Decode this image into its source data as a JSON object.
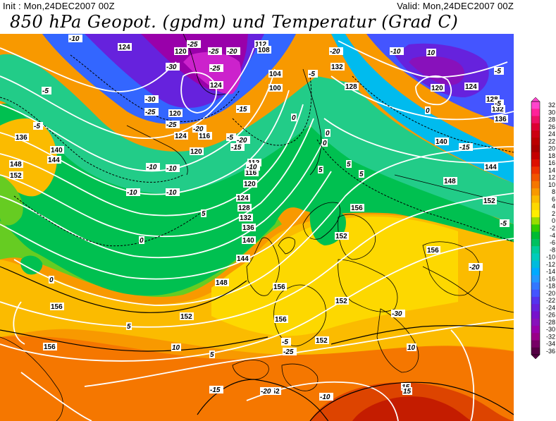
{
  "header": {
    "init": "Init : Mon,24DEC2007 00Z",
    "valid": "Valid: Mon,24DEC2007 00Z",
    "title": "850 hPa Geopot. (gpdm) und Temperatur (Grad C)"
  },
  "legend": {
    "ticks": [
      "32",
      "30",
      "28",
      "26",
      "24",
      "22",
      "20",
      "18",
      "16",
      "14",
      "12",
      "10",
      "8",
      "6",
      "4",
      "2",
      "0",
      "-2",
      "-4",
      "-6",
      "-8",
      "-10",
      "-12",
      "-14",
      "-16",
      "-18",
      "-20",
      "-22",
      "-24",
      "-26",
      "-28",
      "-30",
      "-32",
      "-34",
      "-36"
    ],
    "colors": [
      "#ff44cc",
      "#ff2299",
      "#ee1166",
      "#dd0033",
      "#cc0011",
      "#bb0000",
      "#aa0000",
      "#c40000",
      "#dd1100",
      "#ee3300",
      "#f25500",
      "#f57700",
      "#f89900",
      "#fbbb00",
      "#fdd800",
      "#ffee00",
      "#99dd00",
      "#33cc00",
      "#00bb33",
      "#00c060",
      "#00cc99",
      "#00ccbb",
      "#00bbdd",
      "#00aaff",
      "#2299ff",
      "#3377ff",
      "#4455ff",
      "#5533ee",
      "#6622dd",
      "#7711cc",
      "#8811bb",
      "#9900aa",
      "#990088",
      "#770066",
      "#550044"
    ]
  },
  "geopotential_labels": [
    "124",
    "120",
    "112",
    "108",
    "104",
    "100",
    "124",
    "120",
    "116",
    "120",
    "124",
    "112",
    "116",
    "120",
    "124",
    "128",
    "132",
    "136",
    "140",
    "144",
    "148",
    "152",
    "156",
    "136",
    "140",
    "144",
    "148",
    "152",
    "156",
    "152",
    "152",
    "152",
    "156",
    "152",
    "132",
    "128",
    "124",
    "120",
    "128",
    "132",
    "136",
    "140",
    "144",
    "148",
    "152",
    "156",
    "156",
    "156",
    "152"
  ],
  "temperature_labels": [
    "-10",
    "-25",
    "-25",
    "-20",
    "-30",
    "-25",
    "-30",
    "-25",
    "-15",
    "-20",
    "-20",
    "-25",
    "-10",
    "-10",
    "-5",
    "-5",
    "-10",
    "-20",
    "-15",
    "-10",
    "-10",
    "-5",
    "-5",
    "-10",
    "-5",
    "0",
    "0",
    "0",
    "5",
    "5",
    "10",
    "10",
    "15",
    "15",
    "5",
    "5",
    "0",
    "-5",
    "-10",
    "-15",
    "-20",
    "-25",
    "-30",
    "-20",
    "-15",
    "-5",
    "0",
    "5",
    "0",
    "5",
    "10",
    "-5"
  ]
}
